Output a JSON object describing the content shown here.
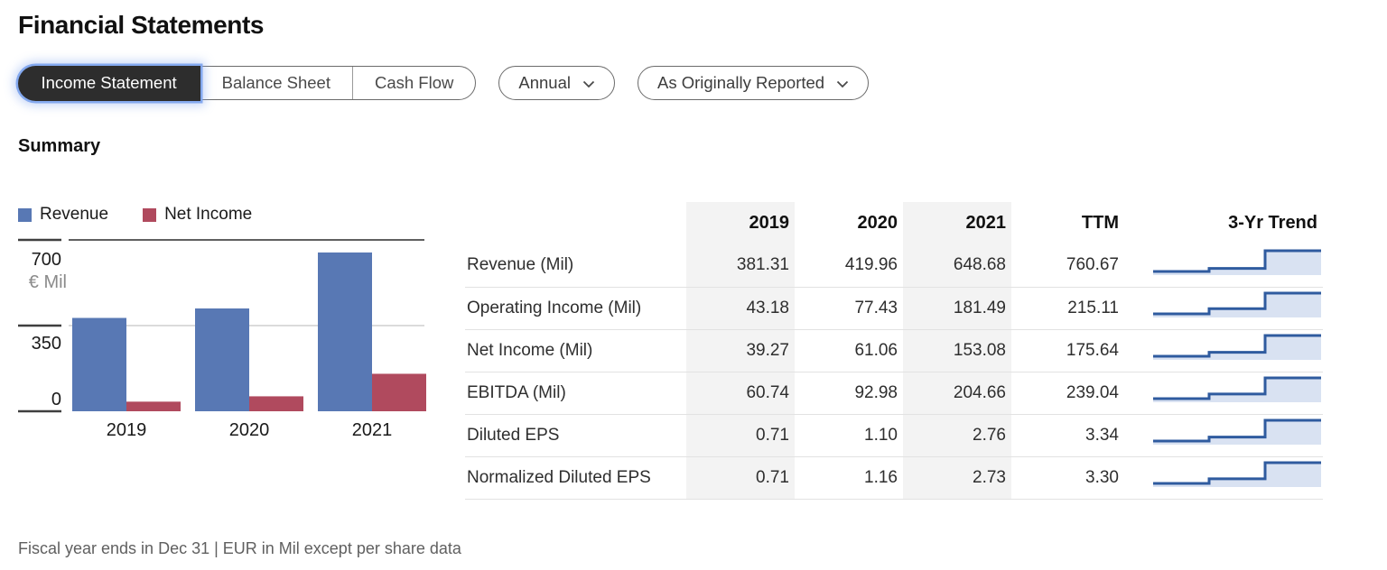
{
  "page": {
    "title": "Financial Statements"
  },
  "tabs": [
    {
      "label": "Income Statement",
      "active": true
    },
    {
      "label": "Balance Sheet",
      "active": false
    },
    {
      "label": "Cash Flow",
      "active": false
    }
  ],
  "filters": [
    {
      "label": "Annual"
    },
    {
      "label": "As Originally Reported"
    }
  ],
  "section": {
    "heading": "Summary"
  },
  "chart_data": {
    "type": "bar",
    "categories": [
      "2019",
      "2020",
      "2021"
    ],
    "series": [
      {
        "name": "Revenue",
        "color": "#5878b4",
        "values": [
          381.31,
          419.96,
          648.68
        ]
      },
      {
        "name": "Net Income",
        "color": "#b04a5e",
        "values": [
          39.27,
          61.06,
          153.08
        ]
      }
    ],
    "ylabel": "€ Mil",
    "yticks": [
      0,
      350,
      700
    ],
    "ylim": [
      0,
      700
    ],
    "legend_position": "top",
    "grid": "horizontal"
  },
  "table": {
    "columns": [
      "",
      "2019",
      "2020",
      "2021",
      "TTM",
      "3-Yr Trend"
    ],
    "shaded_columns": [
      "2019",
      "2021"
    ],
    "rows": [
      {
        "label": "Revenue (Mil)",
        "values": [
          "381.31",
          "419.96",
          "648.68",
          "760.67"
        ],
        "trend": [
          381.31,
          419.96,
          648.68
        ]
      },
      {
        "label": "Operating Income (Mil)",
        "values": [
          "43.18",
          "77.43",
          "181.49",
          "215.11"
        ],
        "trend": [
          43.18,
          77.43,
          181.49
        ]
      },
      {
        "label": "Net Income (Mil)",
        "values": [
          "39.27",
          "61.06",
          "153.08",
          "175.64"
        ],
        "trend": [
          39.27,
          61.06,
          153.08
        ]
      },
      {
        "label": "EBITDA (Mil)",
        "values": [
          "60.74",
          "92.98",
          "204.66",
          "239.04"
        ],
        "trend": [
          60.74,
          92.98,
          204.66
        ]
      },
      {
        "label": "Diluted EPS",
        "values": [
          "0.71",
          "1.10",
          "2.76",
          "3.34"
        ],
        "trend": [
          0.71,
          1.1,
          2.76
        ]
      },
      {
        "label": "Normalized Diluted EPS",
        "values": [
          "0.71",
          "1.16",
          "2.73",
          "3.30"
        ],
        "trend": [
          0.71,
          1.16,
          2.73
        ]
      }
    ]
  },
  "footnote": "Fiscal year ends in Dec 31 | EUR in Mil except per share data",
  "colors": {
    "revenue_bar": "#5878b4",
    "net_income_bar": "#b04a5e",
    "trend_line": "#2f5b9f",
    "trend_fill": "#d9e2f2",
    "column_shade": "#f3f3f3",
    "active_tab_bg": "#2d2d2d",
    "focus_glow": "#80a5ee"
  }
}
